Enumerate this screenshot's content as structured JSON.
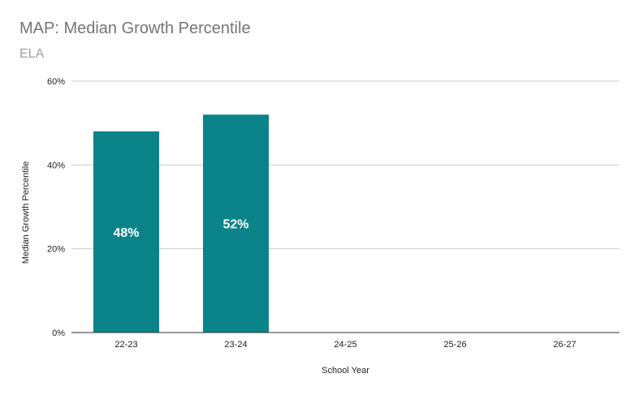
{
  "chart_data": {
    "type": "bar",
    "title": "MAP: Median Growth Percentile",
    "subtitle": "ELA",
    "xlabel": "School Year",
    "ylabel": "Median Growth Percentile",
    "categories": [
      "22-23",
      "23-24",
      "24-25",
      "25-26",
      "26-27"
    ],
    "values": [
      48,
      52,
      null,
      null,
      null
    ],
    "data_labels": [
      "48%",
      "52%",
      "",
      "",
      ""
    ],
    "ylim": [
      0,
      60
    ],
    "yticks": [
      0,
      20,
      40,
      60
    ],
    "ytick_labels": [
      "0%",
      "20%",
      "40%",
      "60%"
    ],
    "grid": true,
    "legend": "none",
    "bar_color": "#0b8489"
  }
}
